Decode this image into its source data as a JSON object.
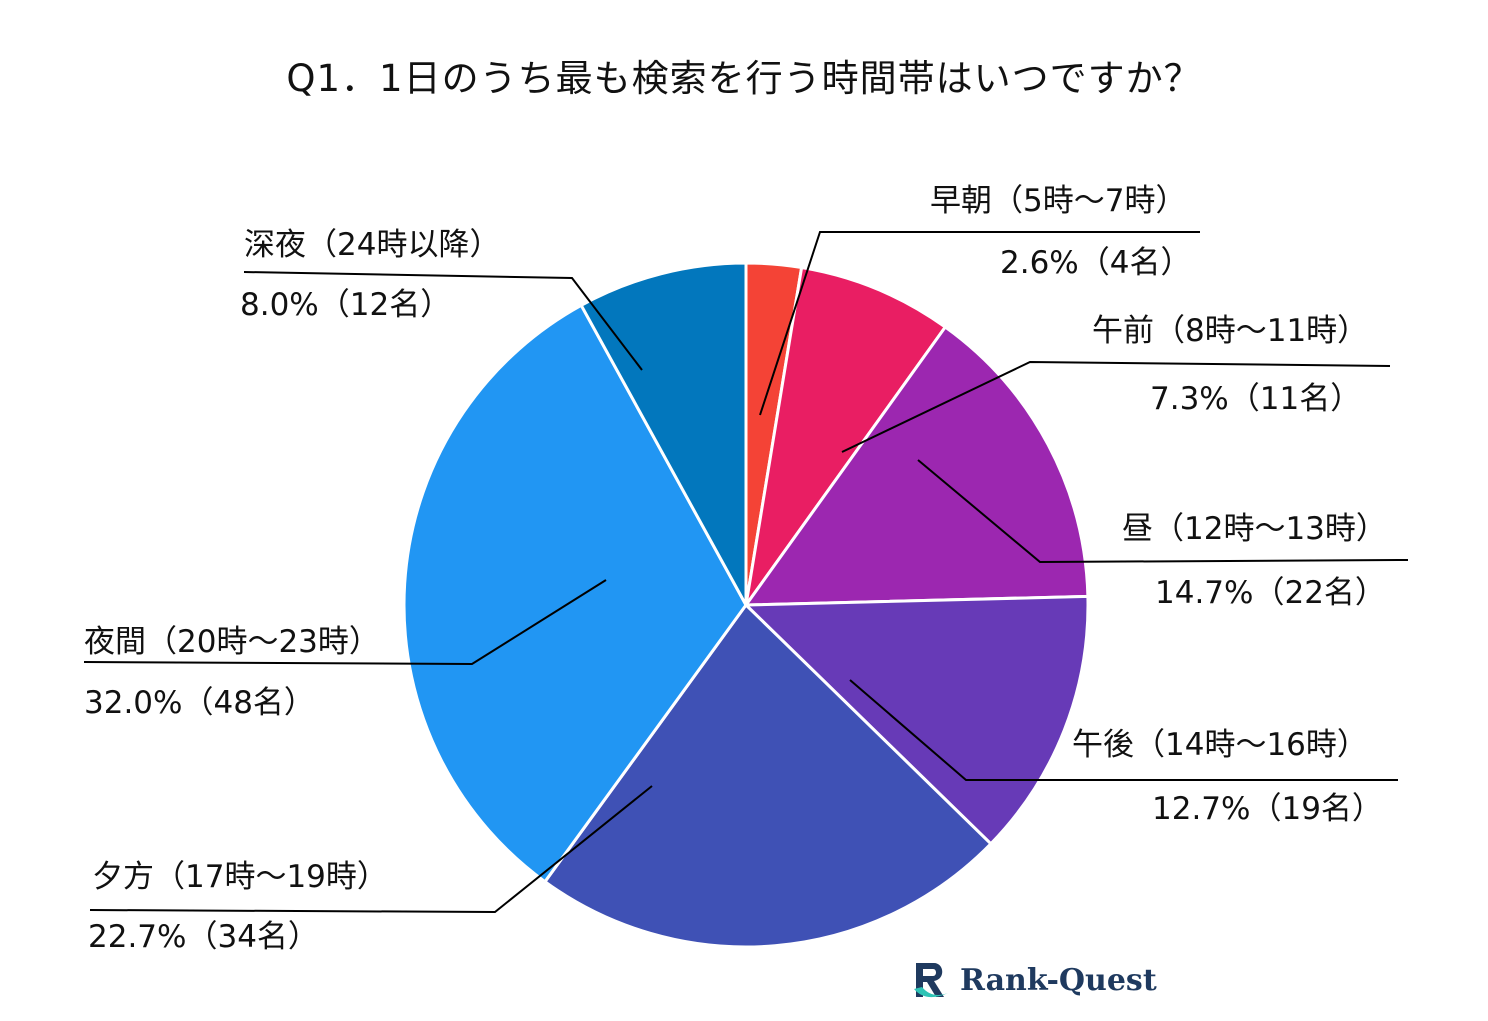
{
  "chart_data": {
    "type": "pie",
    "title": "Q1．1日のうち最も検索を行う時間帯はいつですか？",
    "slices": [
      {
        "label": "早朝（5時～7時）",
        "value_label": "2.6%（4名）",
        "percent": 2.6,
        "count": 4,
        "color": "#f44336"
      },
      {
        "label": "午前（8時～11時）",
        "value_label": "7.3%（11名）",
        "percent": 7.3,
        "count": 11,
        "color": "#e91e63"
      },
      {
        "label": "昼（12時～13時）",
        "value_label": "14.7%（22名）",
        "percent": 14.7,
        "count": 22,
        "color": "#9c27b0"
      },
      {
        "label": "午後（14時～16時）",
        "value_label": "12.7%（19名）",
        "percent": 12.7,
        "count": 19,
        "color": "#673ab7"
      },
      {
        "label": "夕方（17時～19時）",
        "value_label": "22.7%（34名）",
        "percent": 22.7,
        "count": 34,
        "color": "#3f51b5"
      },
      {
        "label": "夜間（20時～23時）",
        "value_label": "32.0%（48名）",
        "percent": 32.0,
        "count": 48,
        "color": "#2196f3"
      },
      {
        "label": "深夜（24時以降）",
        "value_label": "8.0%（12名）",
        "percent": 8.0,
        "count": 12,
        "color": "#0277bd"
      }
    ]
  },
  "logo": {
    "text": "Rank-Quest",
    "icon": "rank-quest-logo-icon",
    "color": "#1f3a5f",
    "accent": "#2ec4b6"
  }
}
